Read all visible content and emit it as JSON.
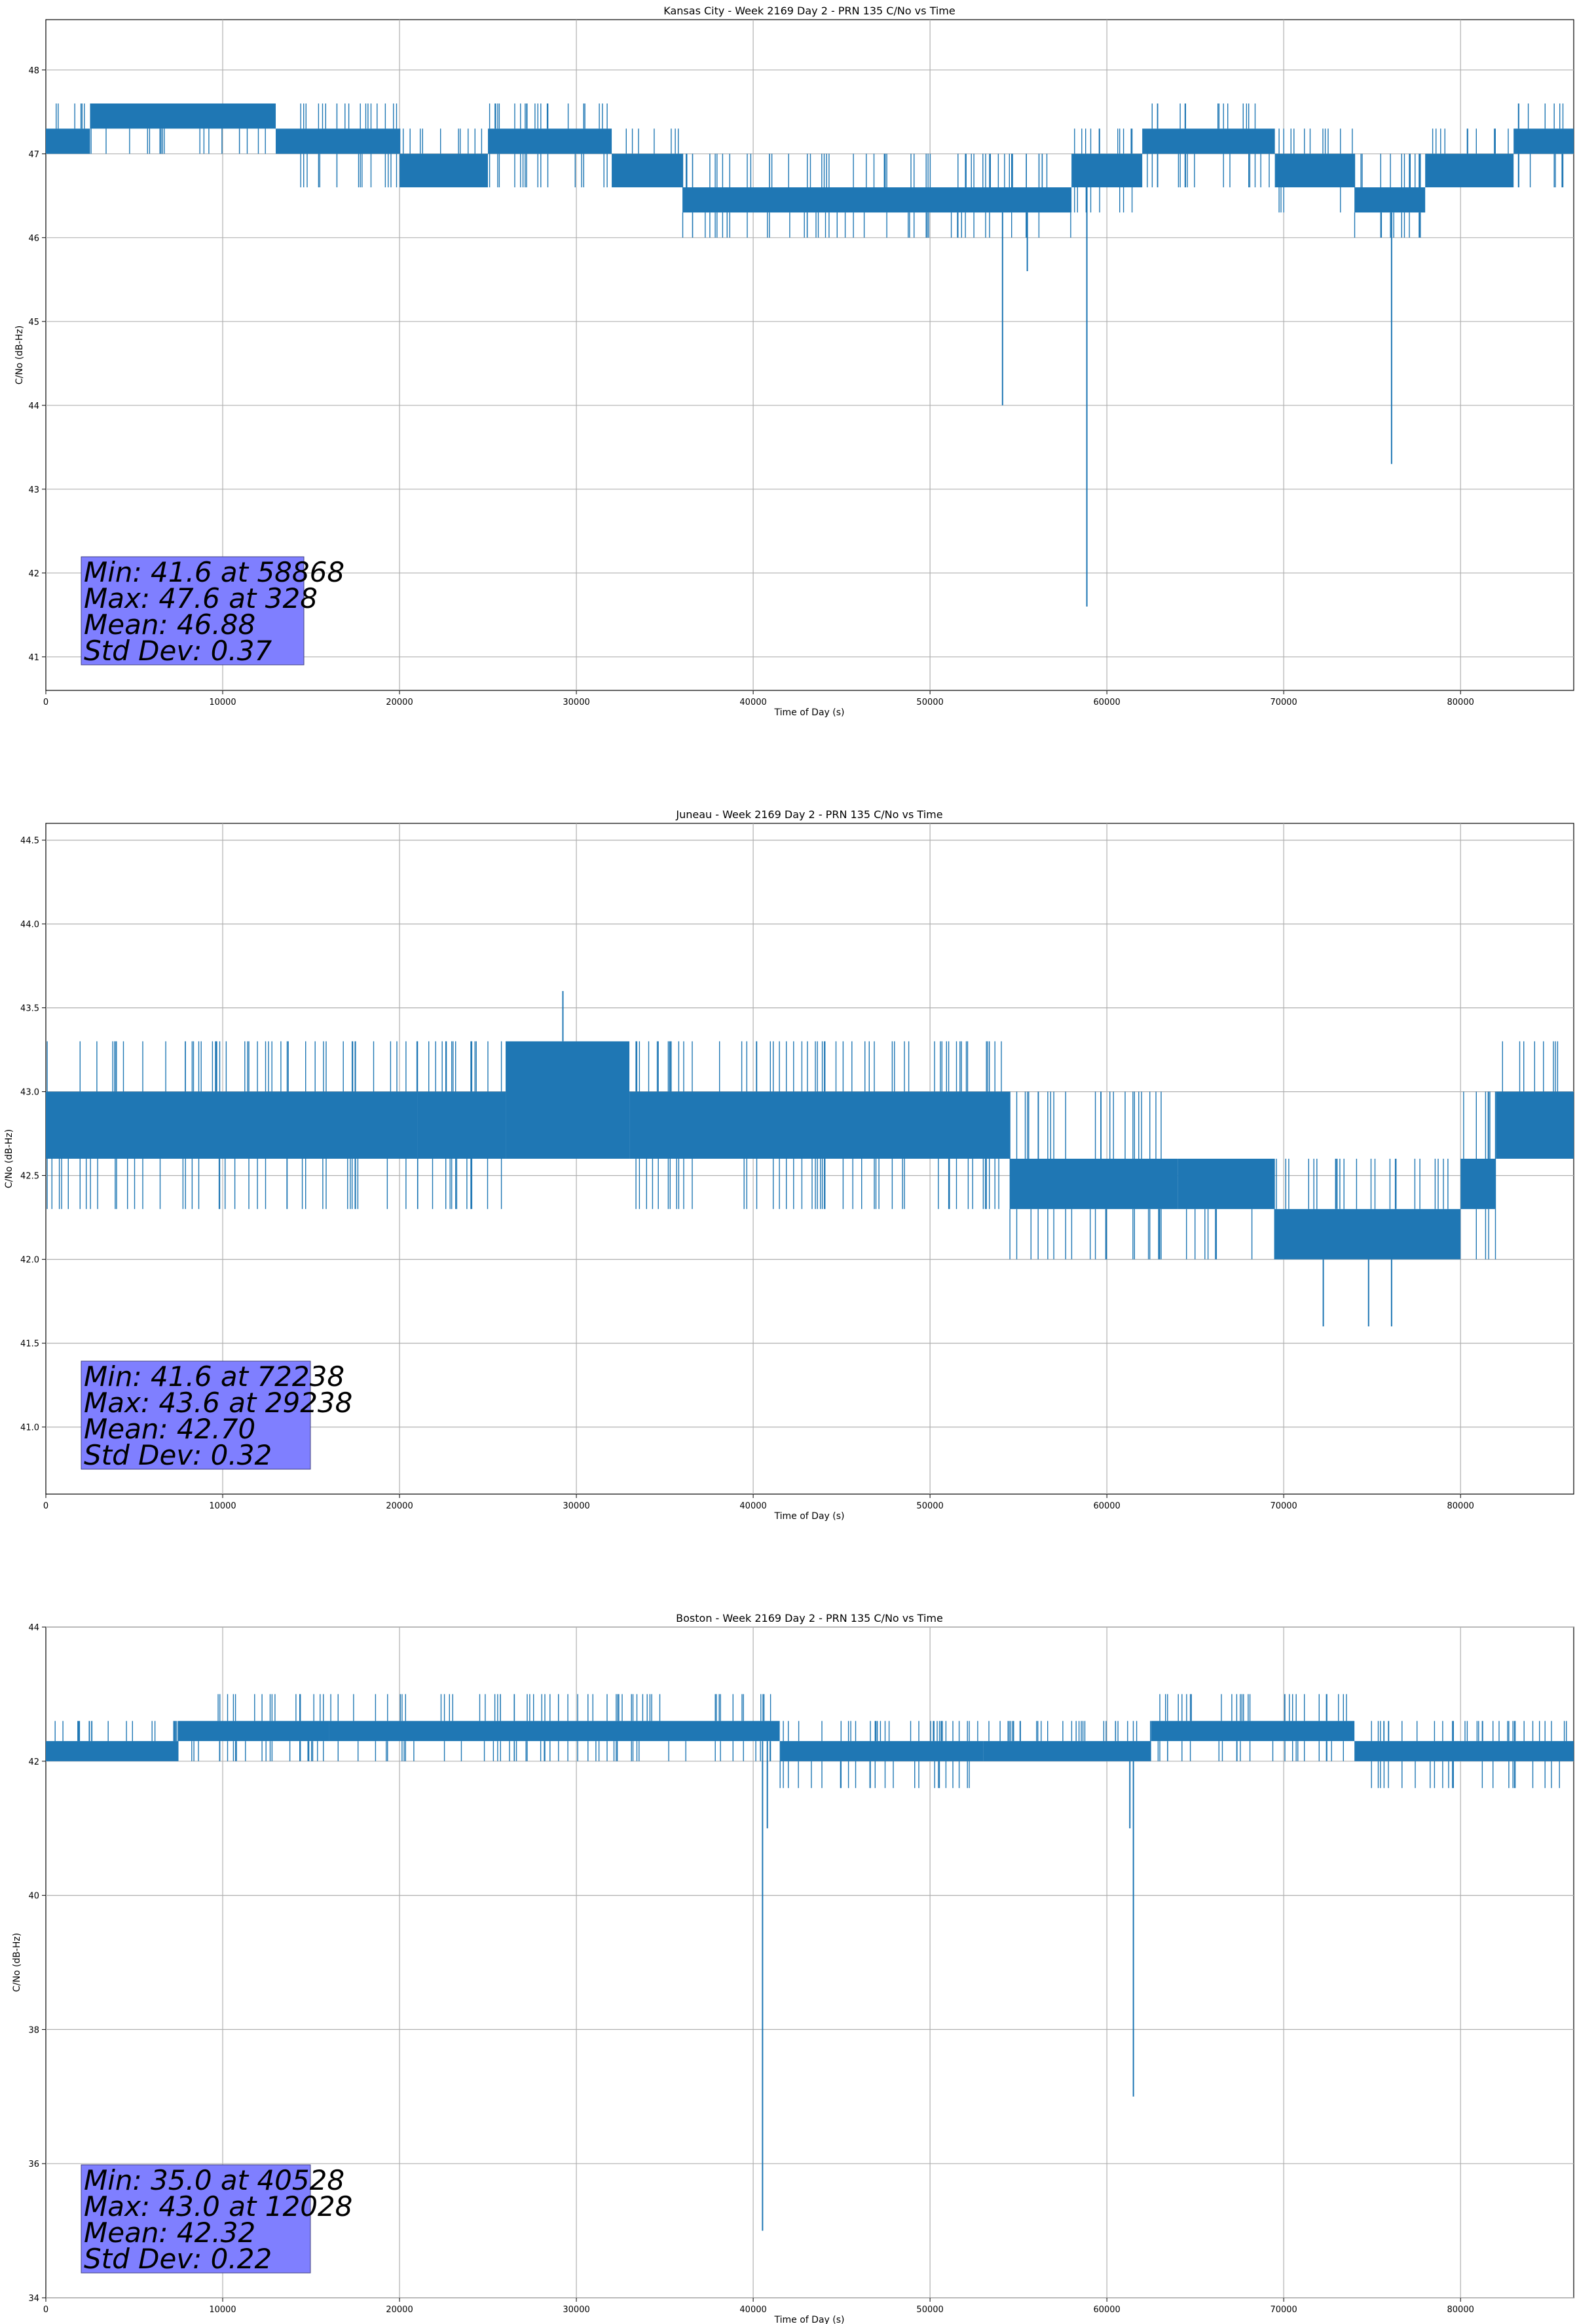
{
  "chart_data": [
    {
      "type": "line",
      "title": "Kansas City - Week 2169 Day 2 - PRN 135 C/No vs Time",
      "xlabel": "Time of Day (s)",
      "ylabel": "C/No (dB-Hz)",
      "xlim": [
        0,
        86400
      ],
      "ylim": [
        40.6,
        48.6
      ],
      "xticks": [
        0,
        10000,
        20000,
        30000,
        40000,
        50000,
        60000,
        70000,
        80000
      ],
      "yticks": [
        41,
        42,
        43,
        44,
        45,
        46,
        47,
        48
      ],
      "ytick_labels": [
        "41",
        "42",
        "43",
        "44",
        "45",
        "46",
        "47",
        "48"
      ],
      "grid": true,
      "color": "#1f77b4",
      "stats_box_color": "#7f7fff",
      "band_segments": [
        {
          "x0": 0,
          "x1": 2500,
          "lo": 47.0,
          "hi": 47.3,
          "spike_lo": 47.0,
          "spike_hi": 47.6
        },
        {
          "x0": 2500,
          "x1": 13000,
          "lo": 47.3,
          "hi": 47.6,
          "spike_lo": 47.0,
          "spike_hi": 47.6
        },
        {
          "x0": 13000,
          "x1": 20000,
          "lo": 47.0,
          "hi": 47.3,
          "spike_lo": 46.6,
          "spike_hi": 47.6
        },
        {
          "x0": 20000,
          "x1": 25000,
          "lo": 46.6,
          "hi": 47.0,
          "spike_lo": 46.6,
          "spike_hi": 47.3
        },
        {
          "x0": 25000,
          "x1": 32000,
          "lo": 47.0,
          "hi": 47.3,
          "spike_lo": 46.6,
          "spike_hi": 47.6
        },
        {
          "x0": 32000,
          "x1": 36000,
          "lo": 46.6,
          "hi": 47.0,
          "spike_lo": 46.6,
          "spike_hi": 47.3
        },
        {
          "x0": 36000,
          "x1": 58000,
          "lo": 46.3,
          "hi": 46.6,
          "spike_lo": 46.0,
          "spike_hi": 47.0
        },
        {
          "x0": 58000,
          "x1": 62000,
          "lo": 46.6,
          "hi": 47.0,
          "spike_lo": 46.3,
          "spike_hi": 47.3
        },
        {
          "x0": 62000,
          "x1": 69500,
          "lo": 47.0,
          "hi": 47.3,
          "spike_lo": 46.6,
          "spike_hi": 47.6
        },
        {
          "x0": 69500,
          "x1": 74000,
          "lo": 46.6,
          "hi": 47.0,
          "spike_lo": 46.3,
          "spike_hi": 47.3
        },
        {
          "x0": 74000,
          "x1": 78000,
          "lo": 46.3,
          "hi": 46.6,
          "spike_lo": 46.0,
          "spike_hi": 47.0
        },
        {
          "x0": 78000,
          "x1": 83000,
          "lo": 46.6,
          "hi": 47.0,
          "spike_lo": 46.6,
          "spike_hi": 47.3
        },
        {
          "x0": 83000,
          "x1": 86400,
          "lo": 47.0,
          "hi": 47.3,
          "spike_lo": 46.6,
          "spike_hi": 47.6
        }
      ],
      "dips": [
        {
          "x": 54100,
          "y": 44.0
        },
        {
          "x": 55500,
          "y": 45.6
        },
        {
          "x": 58868,
          "y": 41.6
        },
        {
          "x": 76100,
          "y": 43.3
        }
      ],
      "stats": [
        "Min: 41.6 at 58868",
        "Max: 47.6 at 328",
        "Mean: 46.88",
        "Std Dev: 0.37"
      ]
    },
    {
      "type": "line",
      "title": "Juneau - Week 2169 Day 2 - PRN 135 C/No vs Time",
      "xlabel": "Time of Day (s)",
      "ylabel": "C/No (dB-Hz)",
      "xlim": [
        0,
        86400
      ],
      "ylim": [
        40.6,
        44.6
      ],
      "xticks": [
        0,
        10000,
        20000,
        30000,
        40000,
        50000,
        60000,
        70000,
        80000
      ],
      "yticks": [
        41.0,
        41.5,
        42.0,
        42.5,
        43.0,
        43.5,
        44.0,
        44.5
      ],
      "ytick_labels": [
        "41.0",
        "41.5",
        "42.0",
        "42.5",
        "43.0",
        "43.5",
        "44.0",
        "44.5"
      ],
      "grid": true,
      "color": "#1f77b4",
      "stats_box_color": "#7f7fff",
      "band_segments": [
        {
          "x0": 0,
          "x1": 21000,
          "lo": 42.6,
          "hi": 43.0,
          "spike_lo": 42.3,
          "spike_hi": 43.3
        },
        {
          "x0": 21000,
          "x1": 26000,
          "lo": 42.6,
          "hi": 43.0,
          "spike_lo": 42.3,
          "spike_hi": 43.3
        },
        {
          "x0": 26000,
          "x1": 33000,
          "lo": 42.6,
          "hi": 43.3,
          "spike_lo": 42.6,
          "spike_hi": 43.3
        },
        {
          "x0": 33000,
          "x1": 54500,
          "lo": 42.6,
          "hi": 43.0,
          "spike_lo": 42.3,
          "spike_hi": 43.3
        },
        {
          "x0": 54500,
          "x1": 64000,
          "lo": 42.3,
          "hi": 42.6,
          "spike_lo": 42.0,
          "spike_hi": 43.0
        },
        {
          "x0": 64000,
          "x1": 69500,
          "lo": 42.3,
          "hi": 42.6,
          "spike_lo": 42.0,
          "spike_hi": 42.6
        },
        {
          "x0": 69500,
          "x1": 80000,
          "lo": 42.0,
          "hi": 42.3,
          "spike_lo": 42.0,
          "spike_hi": 42.6
        },
        {
          "x0": 80000,
          "x1": 82000,
          "lo": 42.3,
          "hi": 42.6,
          "spike_lo": 42.0,
          "spike_hi": 43.0
        },
        {
          "x0": 82000,
          "x1": 86400,
          "lo": 42.6,
          "hi": 43.0,
          "spike_lo": 42.6,
          "spike_hi": 43.3
        }
      ],
      "dips": [
        {
          "x": 72238,
          "y": 41.6
        },
        {
          "x": 74800,
          "y": 41.6
        },
        {
          "x": 76100,
          "y": 41.6
        }
      ],
      "peaks": [
        {
          "x": 29238,
          "y": 43.6
        }
      ],
      "stats": [
        "Min: 41.6 at 72238",
        "Max: 43.6 at 29238",
        "Mean: 42.70",
        "Std Dev: 0.32"
      ]
    },
    {
      "type": "line",
      "title": "Boston - Week 2169 Day 2 - PRN 135 C/No vs Time",
      "xlabel": "Time of Day (s)",
      "ylabel": "C/No (dB-Hz)",
      "xlim": [
        0,
        86400
      ],
      "ylim": [
        34,
        44
      ],
      "xticks": [
        0,
        10000,
        20000,
        30000,
        40000,
        50000,
        60000,
        70000,
        80000
      ],
      "yticks": [
        34,
        36,
        38,
        40,
        42,
        44
      ],
      "ytick_labels": [
        "34",
        "36",
        "38",
        "40",
        "42",
        "44"
      ],
      "grid": true,
      "color": "#1f77b4",
      "stats_box_color": "#7f7fff",
      "band_segments": [
        {
          "x0": 0,
          "x1": 7500,
          "lo": 42.0,
          "hi": 42.3,
          "spike_lo": 42.0,
          "spike_hi": 42.6
        },
        {
          "x0": 7500,
          "x1": 16000,
          "lo": 42.3,
          "hi": 42.6,
          "spike_lo": 42.0,
          "spike_hi": 43.0
        },
        {
          "x0": 16000,
          "x1": 41500,
          "lo": 42.3,
          "hi": 42.6,
          "spike_lo": 42.0,
          "spike_hi": 43.0
        },
        {
          "x0": 41500,
          "x1": 53000,
          "lo": 42.0,
          "hi": 42.3,
          "spike_lo": 41.6,
          "spike_hi": 42.6
        },
        {
          "x0": 53000,
          "x1": 62500,
          "lo": 42.0,
          "hi": 42.3,
          "spike_lo": 42.0,
          "spike_hi": 42.6
        },
        {
          "x0": 62500,
          "x1": 74000,
          "lo": 42.3,
          "hi": 42.6,
          "spike_lo": 42.0,
          "spike_hi": 43.0
        },
        {
          "x0": 74000,
          "x1": 86400,
          "lo": 42.0,
          "hi": 42.3,
          "spike_lo": 41.6,
          "spike_hi": 42.6
        }
      ],
      "dips": [
        {
          "x": 40528,
          "y": 35.0
        },
        {
          "x": 40800,
          "y": 41.0
        },
        {
          "x": 61500,
          "y": 37.0
        },
        {
          "x": 61300,
          "y": 41.0
        }
      ],
      "stats": [
        "Min: 35.0 at 40528",
        "Max: 43.0 at 12028",
        "Mean: 42.32",
        "Std Dev: 0.22"
      ]
    }
  ]
}
